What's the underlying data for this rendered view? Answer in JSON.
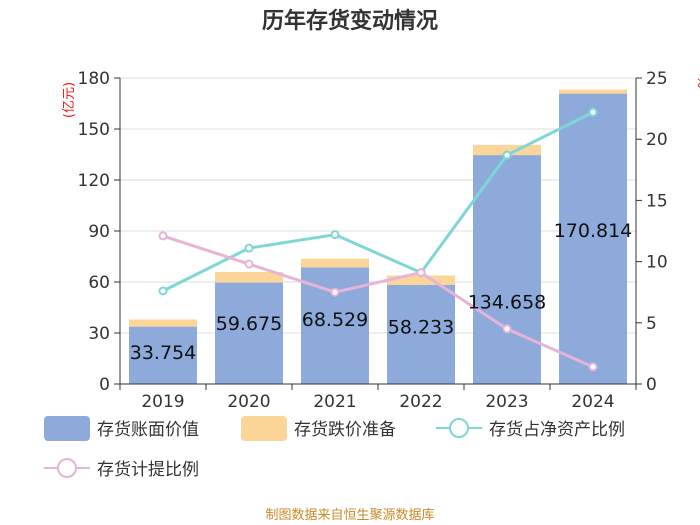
{
  "chart_data": {
    "type": "bar",
    "title": "历年存货变动情况",
    "categories": [
      "2019",
      "2020",
      "2021",
      "2022",
      "2023",
      "2024"
    ],
    "series": [
      {
        "name": "存货账面价值",
        "type": "bar",
        "axis": "left",
        "stack": "total",
        "values": [
          33.754,
          59.675,
          68.529,
          58.233,
          134.658,
          170.814
        ],
        "labels": [
          "33.754",
          "59.675",
          "68.529",
          "58.233",
          "134.658",
          "170.814"
        ],
        "color": "#8eaadb"
      },
      {
        "name": "存货跌价准备",
        "type": "bar",
        "axis": "left",
        "stack": "total",
        "values": [
          4.2,
          6.2,
          5.2,
          5.6,
          6.0,
          2.4
        ],
        "color": "#fcd699"
      },
      {
        "name": "存货占净资产比例",
        "type": "line",
        "axis": "right",
        "values": [
          7.6,
          11.1,
          12.2,
          9.1,
          18.7,
          22.2
        ],
        "color": "#7fd6d6"
      },
      {
        "name": "存货计提比例",
        "type": "line",
        "axis": "right",
        "values": [
          12.1,
          9.8,
          7.5,
          9.1,
          4.5,
          1.4
        ],
        "color": "#e8b3d8"
      }
    ],
    "left_axis": {
      "unit_label": "(亿元)",
      "ylim": [
        0,
        180
      ],
      "ticks": [
        "0",
        "30",
        "60",
        "90",
        "120",
        "150",
        "180"
      ]
    },
    "right_axis": {
      "unit_label": "%",
      "ylim": [
        0,
        25
      ],
      "ticks": [
        "0",
        "5",
        "10",
        "15",
        "20",
        "25"
      ]
    },
    "grid": true,
    "legend_position": "bottom"
  },
  "source": "制图数据来自恒生聚源数据库"
}
